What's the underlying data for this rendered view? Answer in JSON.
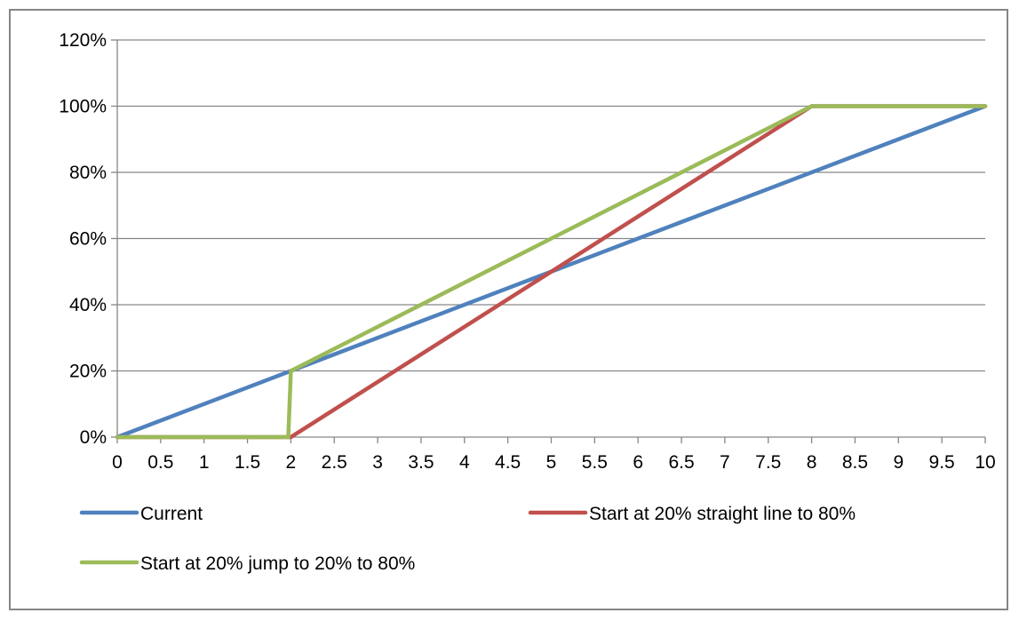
{
  "chart_data": {
    "type": "line",
    "title": "",
    "xlabel": "",
    "ylabel": "",
    "x_tick_labels": [
      "0",
      "0.5",
      "1",
      "1.5",
      "2",
      "2.5",
      "3",
      "3.5",
      "4",
      "4.5",
      "5",
      "5.5",
      "6",
      "6.5",
      "7",
      "7.5",
      "8",
      "8.5",
      "9",
      "9.5",
      "10"
    ],
    "y_tick_labels": [
      "0%",
      "20%",
      "40%",
      "60%",
      "80%",
      "100%",
      "120%"
    ],
    "xlim": [
      0,
      10
    ],
    "ylim": [
      0,
      120
    ],
    "grid": "horizontal",
    "legend_position": "bottom",
    "series": [
      {
        "name": "Current",
        "color": "#4f81bd",
        "x": [
          0,
          10
        ],
        "y": [
          0,
          100
        ]
      },
      {
        "name": "Start at 20% straight line to 80%",
        "color": "#c0504d",
        "x": [
          0,
          2,
          8,
          10
        ],
        "y": [
          0,
          0,
          100,
          100
        ]
      },
      {
        "name": "Start at 20% jump to 20% to 80%",
        "color": "#9bbb59",
        "x": [
          0,
          1.97,
          2,
          8,
          10
        ],
        "y": [
          0,
          0,
          20,
          100,
          100
        ]
      }
    ]
  }
}
